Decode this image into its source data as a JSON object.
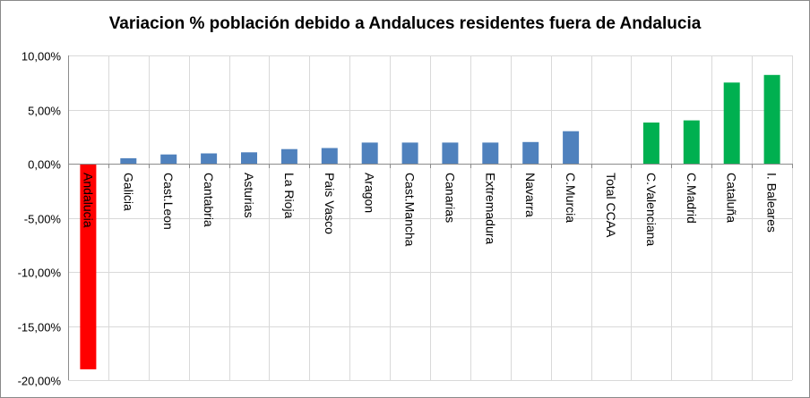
{
  "chart_data": {
    "type": "bar",
    "title": "Variacion % población debido a Andaluces residentes fuera de Andalucia",
    "xlabel": "",
    "ylabel": "",
    "ylim": [
      -20,
      10
    ],
    "y_ticks": [
      10,
      5,
      0,
      -5,
      -10,
      -15,
      -20
    ],
    "y_tick_labels": [
      "10,00%",
      "5,00%",
      "0,00%",
      "-5,00%",
      "-10,00%",
      "-15,00%",
      "-20,00%"
    ],
    "grid": true,
    "legend": "none",
    "categories": [
      "Andalucia",
      "Galicia",
      "Cast.Leon",
      "Cantabria",
      "Asturias",
      "La Rioja",
      "Pais Vasco",
      "Aragon",
      "Cast.Mancha",
      "Canarias",
      "Extremadura",
      "Navarra",
      "C.Murcia",
      "Total CCAA",
      "C.Valenciana",
      "C.Madrid",
      "Cataluña",
      "I. Baleares"
    ],
    "values": [
      -19.0,
      0.5,
      0.85,
      0.95,
      1.05,
      1.35,
      1.45,
      1.95,
      1.95,
      1.95,
      1.95,
      2.0,
      3.0,
      0.0,
      3.8,
      4.0,
      7.5,
      8.2
    ],
    "colors": [
      "#ff0000",
      "#4f81bd",
      "#4f81bd",
      "#4f81bd",
      "#4f81bd",
      "#4f81bd",
      "#4f81bd",
      "#4f81bd",
      "#4f81bd",
      "#4f81bd",
      "#4f81bd",
      "#4f81bd",
      "#4f81bd",
      "#4f81bd",
      "#00b050",
      "#00b050",
      "#00b050",
      "#00b050"
    ]
  }
}
